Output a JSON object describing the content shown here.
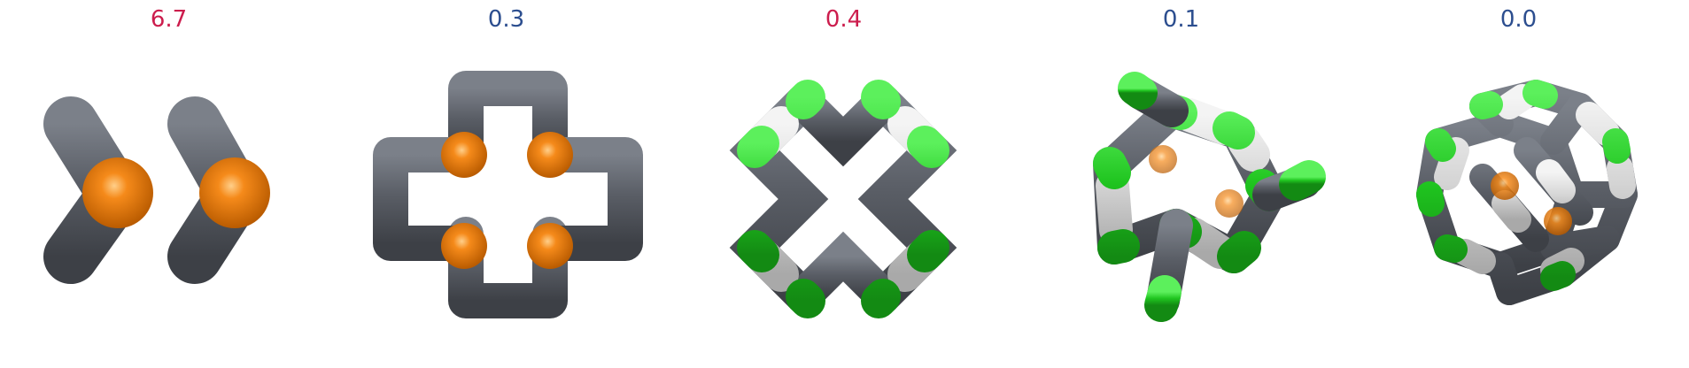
{
  "colors": {
    "positive": "#cc1d4d",
    "negative": "#2c4e8f",
    "carbon": "#5a5e66",
    "chlorine": "#22cc22",
    "hydrogen": "#d8d8d8",
    "phosphorus": "#ef7a10"
  },
  "panels": [
    {
      "label": "6.7",
      "tone": "positive",
      "molecule": "cage-side-view-icon"
    },
    {
      "label": "0.3",
      "tone": "negative",
      "molecule": "cage-top-view-icon"
    },
    {
      "label": "0.4",
      "tone": "positive",
      "molecule": "cage-cross-view-icon"
    },
    {
      "label": "0.1",
      "tone": "negative",
      "molecule": "ring-open-view-icon"
    },
    {
      "label": "0.0",
      "tone": "negative",
      "molecule": "cage-tilted-view-icon"
    }
  ]
}
